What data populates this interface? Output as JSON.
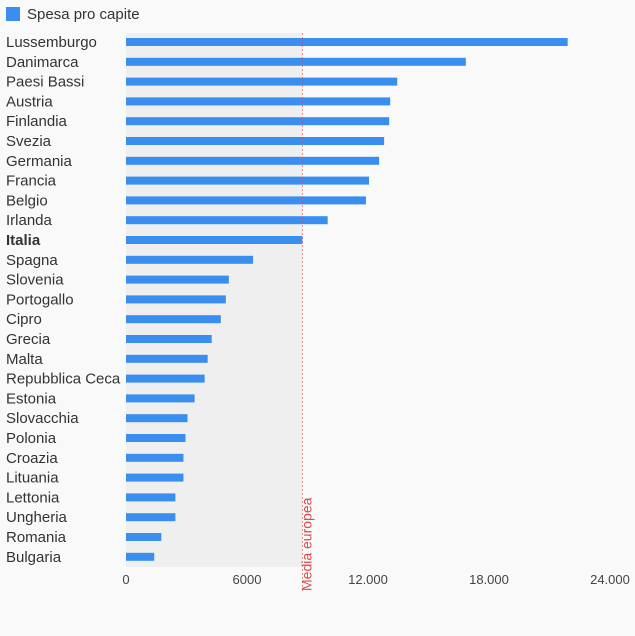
{
  "chart_data": {
    "type": "bar",
    "orientation": "horizontal",
    "legend": {
      "label": "Spesa pro capite",
      "position": "top-left"
    },
    "categories": [
      "Lussemburgo",
      "Danimarca",
      "Paesi Bassi",
      "Austria",
      "Finlandia",
      "Svezia",
      "Germania",
      "Francia",
      "Belgio",
      "Irlanda",
      "Italia",
      "Spagna",
      "Slovenia",
      "Portogallo",
      "Cipro",
      "Grecia",
      "Malta",
      "Repubblica Ceca",
      "Estonia",
      "Slovacchia",
      "Polonia",
      "Croazia",
      "Lituania",
      "Lettonia",
      "Ungheria",
      "Romania",
      "Bulgaria"
    ],
    "highlighted_category": "Italia",
    "series": [
      {
        "name": "Spesa pro capite",
        "color": "#3a8ef0",
        "values": [
          21900,
          16850,
          13450,
          13100,
          13050,
          12800,
          12550,
          12050,
          11900,
          10000,
          8750,
          6300,
          5100,
          4950,
          4700,
          4250,
          4050,
          3900,
          3400,
          3050,
          2950,
          2850,
          2850,
          2450,
          2450,
          1750,
          1400
        ]
      }
    ],
    "reference_line": {
      "label": "Media europea",
      "value": 8750,
      "color": "#d94a4a"
    },
    "x_ticks": [
      {
        "value": 0,
        "label": "0"
      },
      {
        "value": 6000,
        "label": "6000"
      },
      {
        "value": 12000,
        "label": "12.000"
      },
      {
        "value": 18000,
        "label": "18.000"
      },
      {
        "value": 24000,
        "label": "24.000"
      }
    ],
    "xlim": [
      0,
      24000
    ],
    "grid": false,
    "shaded_region_below_reference": true
  }
}
